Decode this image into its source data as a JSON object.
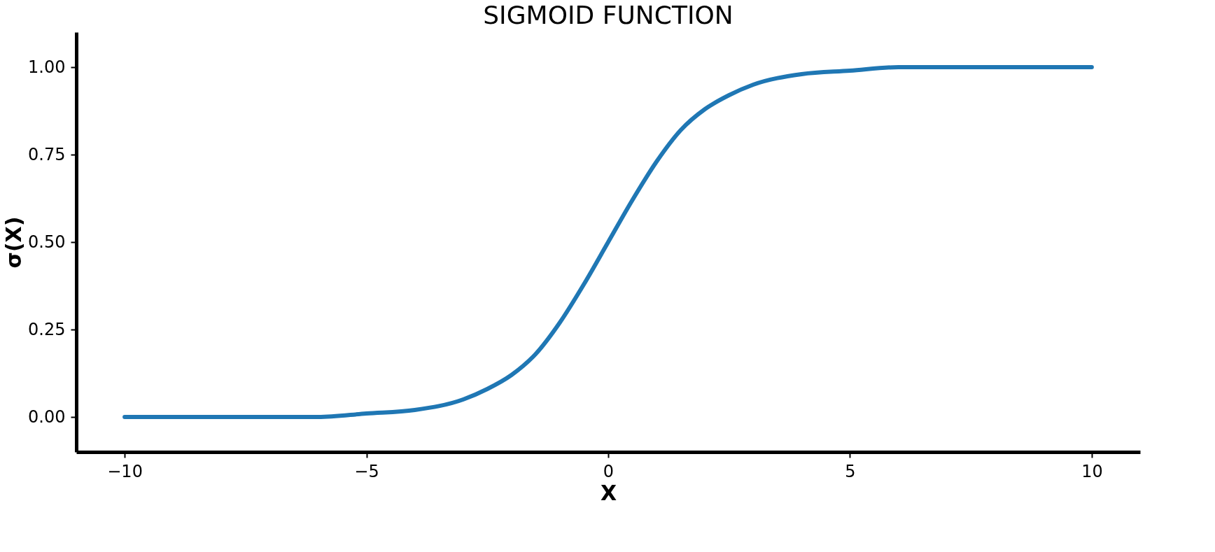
{
  "chart_data": {
    "type": "line",
    "title": "SIGMOID FUNCTION",
    "xlabel": "X",
    "ylabel": "σ(X)",
    "x": [
      -10,
      -9,
      -8,
      -7,
      -6,
      -5,
      -4,
      -3,
      -2.5,
      -2,
      -1.5,
      -1,
      -0.5,
      0,
      0.5,
      1,
      1.5,
      2,
      2.5,
      3,
      4,
      5,
      6,
      7,
      8,
      9,
      10
    ],
    "series": [
      {
        "color": "#1f77b4",
        "values": [
          0.0,
          0.0,
          0.0,
          0.0,
          0.0,
          0.01,
          0.02,
          0.05,
          0.08,
          0.12,
          0.18,
          0.27,
          0.38,
          0.5,
          0.62,
          0.73,
          0.82,
          0.88,
          0.92,
          0.95,
          0.98,
          0.99,
          1.0,
          1.0,
          1.0,
          1.0,
          1.0
        ]
      }
    ],
    "xlim": [
      -11,
      11
    ],
    "ylim": [
      -0.1,
      1.1
    ],
    "xticks": [
      -10,
      -5,
      0,
      5,
      10
    ],
    "yticks": [
      {
        "value": 0,
        "label": "0.00"
      },
      {
        "value": 0.25,
        "label": "0.25"
      },
      {
        "value": 0.5,
        "label": "0.50"
      },
      {
        "value": 0.75,
        "label": "0.75"
      },
      {
        "value": 1,
        "label": "1.00"
      }
    ],
    "grid": false,
    "marker": "none",
    "line_style": "solid"
  }
}
